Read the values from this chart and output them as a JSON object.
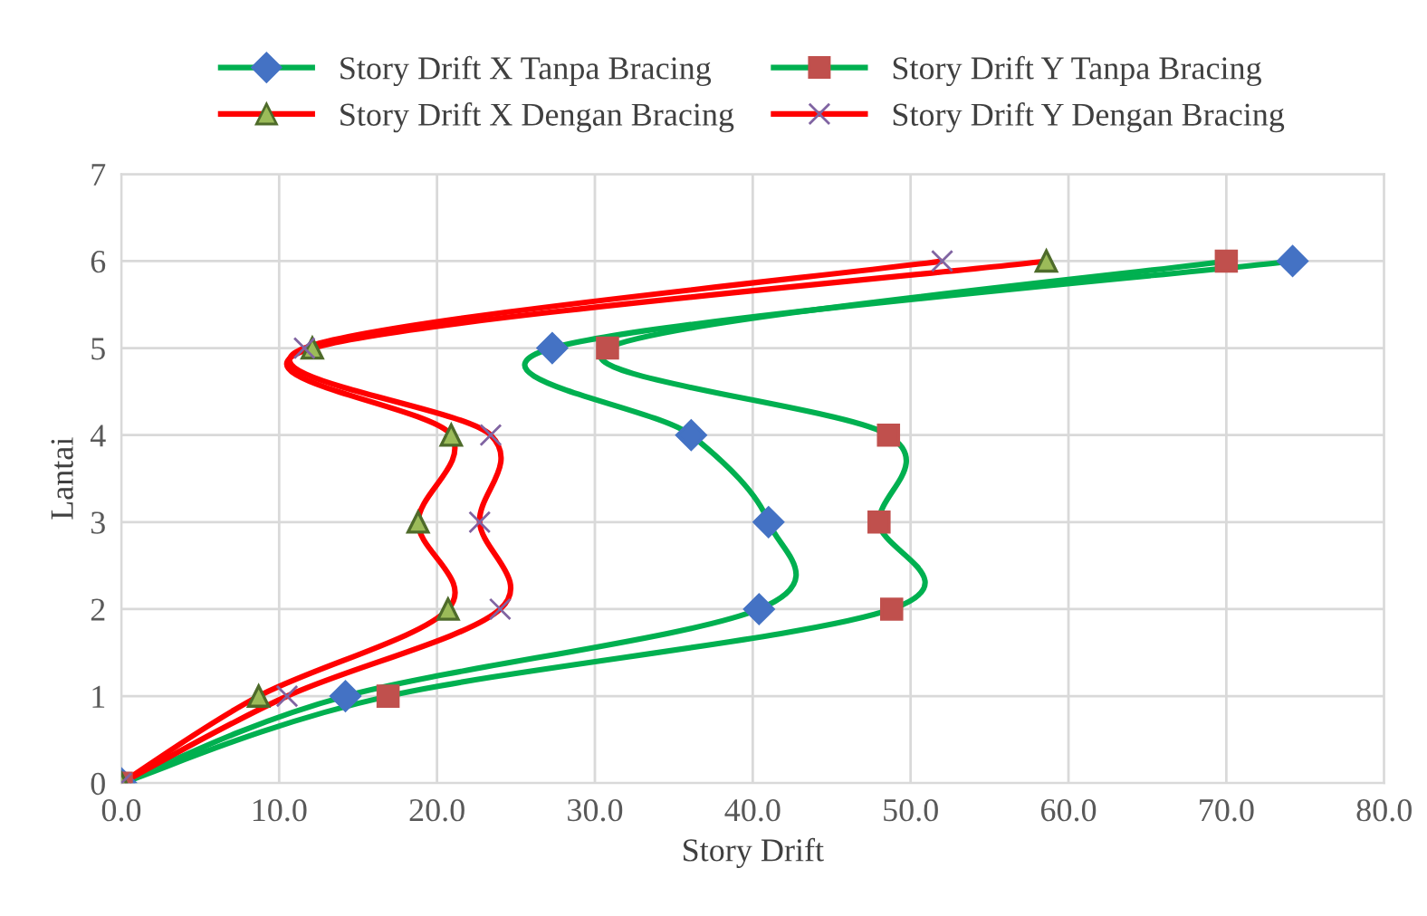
{
  "chart_data": {
    "type": "line",
    "xlabel": "Story Drift",
    "ylabel": "Lantai",
    "xlim": [
      0,
      80
    ],
    "ylim": [
      0,
      7
    ],
    "xticks": [
      {
        "value": 0,
        "label": "0.0"
      },
      {
        "value": 10,
        "label": "10.0"
      },
      {
        "value": 20,
        "label": "20.0"
      },
      {
        "value": 30,
        "label": "30.0"
      },
      {
        "value": 40,
        "label": "40.0"
      },
      {
        "value": 50,
        "label": "50.0"
      },
      {
        "value": 60,
        "label": "60.0"
      },
      {
        "value": 70,
        "label": "70.0"
      },
      {
        "value": 80,
        "label": "80.0"
      }
    ],
    "yticks": [
      0,
      1,
      2,
      3,
      4,
      5,
      6,
      7
    ],
    "grid": true,
    "legend": "top",
    "line_style": "solid",
    "series": [
      {
        "name": "Story Drift X Tanpa Bracing",
        "color": "#00b050",
        "marker": "diamond",
        "colors": [
          "#4472c4",
          "#4472c4",
          "#4472c4",
          "#4472c4",
          "#4472c4",
          "#4472c4",
          "#4472c4"
        ],
        "x": [
          0,
          14.2,
          40.4,
          41.0,
          36.1,
          27.3,
          74.2
        ],
        "values": [
          0,
          1,
          2,
          3,
          4,
          5,
          6
        ]
      },
      {
        "name": "Story Drift Y Tanpa Bracing",
        "color": "#00b050",
        "marker": "square",
        "colors": [
          "#c0504d",
          "#c0504d",
          "#c0504d",
          "#c0504d",
          "#c0504d",
          "#c0504d",
          "#c0504d"
        ],
        "x": [
          0,
          16.9,
          48.8,
          48.0,
          48.6,
          30.8,
          70.0
        ],
        "values": [
          0,
          1,
          2,
          3,
          4,
          5,
          6
        ]
      },
      {
        "name": "Story Drift X Dengan Bracing",
        "color": "#ff0000",
        "marker": "triangle",
        "colors": [
          "#9bbb59",
          "#9bbb59",
          "#9bbb59",
          "#9bbb59",
          "#9bbb59",
          "#9bbb59",
          "#9bbb59"
        ],
        "x": [
          0,
          8.7,
          20.7,
          18.8,
          20.9,
          12.1,
          58.6
        ],
        "values": [
          0,
          1,
          2,
          3,
          4,
          5,
          6
        ]
      },
      {
        "name": "Story Drift Y Dengan Bracing",
        "color": "#ff0000",
        "marker": "cross",
        "colors": [
          "#8064a2",
          "#8064a2",
          "#8064a2",
          "#8064a2",
          "#8064a2",
          "#8064a2",
          "#8064a2"
        ],
        "x": [
          0,
          10.5,
          24.0,
          22.7,
          23.4,
          11.6,
          52.0
        ],
        "values": [
          0,
          1,
          2,
          3,
          4,
          5,
          6
        ]
      }
    ]
  }
}
